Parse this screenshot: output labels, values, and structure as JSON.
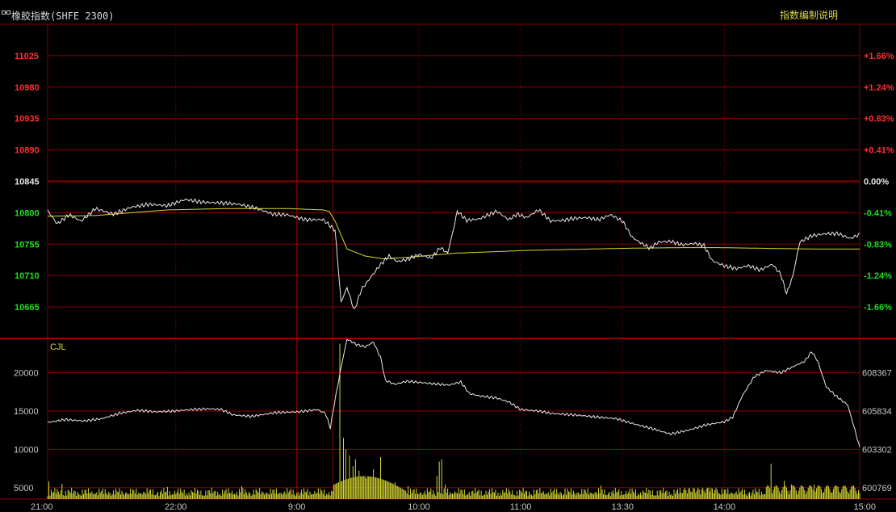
{
  "header": {
    "title": "橡胶指数(SHFE 2300)",
    "help_link": "指数编制说明"
  },
  "colors": {
    "grid": "#8b0000",
    "price_line": "#e8e8e8",
    "avg_line": "#d8d830",
    "volume_bar": "#d8d830",
    "up_text": "#ff3030",
    "down_text": "#22dd22",
    "neutral_text": "#e8e8e8",
    "volume_text": "#c8c8c8",
    "cjl_label": "#e0d84a"
  },
  "chart_data": [
    {
      "type": "line",
      "title": "",
      "prev_close": 10845,
      "ylim": [
        10620,
        11070
      ],
      "y_ticks_left": [
        "11025",
        "10980",
        "10935",
        "10890",
        "10845",
        "10800",
        "10755",
        "10710",
        "10665"
      ],
      "y_ticks_right": [
        "+1.66%",
        "+1.24%",
        "+0.83%",
        "+0.41%",
        "0.00%",
        "-0.41%",
        "-0.83%",
        "-1.24%",
        "-1.66%"
      ],
      "x_ticks": [
        "21:00",
        "22:00",
        "9:00",
        "10:00",
        "11:00",
        "13:30",
        "14:00",
        "15:00"
      ],
      "series": [
        {
          "kind": "price",
          "points": [
            [
              0,
              10803
            ],
            [
              8,
              10784
            ],
            [
              18,
              10797
            ],
            [
              28,
              10788
            ],
            [
              40,
              10806
            ],
            [
              55,
              10798
            ],
            [
              70,
              10808
            ],
            [
              85,
              10812
            ],
            [
              100,
              10810
            ],
            [
              115,
              10819
            ],
            [
              130,
              10815
            ],
            [
              145,
              10814
            ],
            [
              160,
              10812
            ],
            [
              175,
              10806
            ],
            [
              188,
              10798
            ],
            [
              200,
              10797
            ],
            [
              215,
              10790
            ],
            [
              230,
              10790
            ],
            [
              240,
              10775
            ],
            [
              245,
              10672
            ],
            [
              250,
              10693
            ],
            [
              256,
              10660
            ],
            [
              262,
              10690
            ],
            [
              270,
              10708
            ],
            [
              278,
              10726
            ],
            [
              285,
              10738
            ],
            [
              292,
              10730
            ],
            [
              300,
              10733
            ],
            [
              310,
              10740
            ],
            [
              320,
              10735
            ],
            [
              328,
              10750
            ],
            [
              334,
              10742
            ],
            [
              338,
              10770
            ],
            [
              342,
              10802
            ],
            [
              350,
              10789
            ],
            [
              360,
              10791
            ],
            [
              375,
              10802
            ],
            [
              385,
              10790
            ],
            [
              392,
              10798
            ],
            [
              400,
              10793
            ],
            [
              410,
              10804
            ],
            [
              420,
              10788
            ],
            [
              430,
              10789
            ],
            [
              440,
              10792
            ],
            [
              450,
              10793
            ],
            [
              460,
              10790
            ],
            [
              470,
              10797
            ],
            [
              480,
              10788
            ],
            [
              488,
              10765
            ],
            [
              495,
              10757
            ],
            [
              503,
              10749
            ],
            [
              510,
              10758
            ],
            [
              520,
              10759
            ],
            [
              530,
              10754
            ],
            [
              540,
              10756
            ],
            [
              548,
              10753
            ],
            [
              555,
              10731
            ],
            [
              565,
              10724
            ],
            [
              575,
              10720
            ],
            [
              585,
              10724
            ],
            [
              595,
              10718
            ],
            [
              605,
              10726
            ],
            [
              612,
              10712
            ],
            [
              617,
              10684
            ],
            [
              622,
              10708
            ],
            [
              628,
              10758
            ],
            [
              638,
              10767
            ],
            [
              650,
              10770
            ],
            [
              660,
              10770
            ],
            [
              670,
              10763
            ],
            [
              678,
              10769
            ]
          ]
        },
        {
          "kind": "average",
          "points": [
            [
              0,
              10795
            ],
            [
              40,
              10796
            ],
            [
              100,
              10804
            ],
            [
              150,
              10806
            ],
            [
              200,
              10806
            ],
            [
              230,
              10804
            ],
            [
              235,
              10802
            ],
            [
              240,
              10788
            ],
            [
              250,
              10748
            ],
            [
              265,
              10738
            ],
            [
              280,
              10734
            ],
            [
              300,
              10736
            ],
            [
              340,
              10742
            ],
            [
              400,
              10746
            ],
            [
              480,
              10749
            ],
            [
              530,
              10750
            ],
            [
              560,
              10750
            ],
            [
              600,
              10749
            ],
            [
              640,
              10748
            ],
            [
              678,
              10748
            ]
          ]
        }
      ]
    },
    {
      "type": "bar",
      "title": "CJL",
      "ylim": [
        3500,
        24500
      ],
      "y_ticks_left": [
        "20000",
        "15000",
        "10000",
        "5000"
      ],
      "y_ticks_right": [
        "608367",
        "605834",
        "603302",
        "600769"
      ],
      "open_interest": [
        [
          0,
          13500
        ],
        [
          15,
          13900
        ],
        [
          30,
          13700
        ],
        [
          45,
          14000
        ],
        [
          60,
          14700
        ],
        [
          75,
          15100
        ],
        [
          90,
          14900
        ],
        [
          105,
          15000
        ],
        [
          120,
          15200
        ],
        [
          135,
          15300
        ],
        [
          145,
          15200
        ],
        [
          155,
          14500
        ],
        [
          170,
          14300
        ],
        [
          190,
          14800
        ],
        [
          210,
          14900
        ],
        [
          225,
          15200
        ],
        [
          232,
          14700
        ],
        [
          236,
          12800
        ],
        [
          240,
          16500
        ],
        [
          246,
          21500
        ],
        [
          250,
          24400
        ],
        [
          258,
          23700
        ],
        [
          265,
          23400
        ],
        [
          272,
          24000
        ],
        [
          278,
          22000
        ],
        [
          282,
          19000
        ],
        [
          290,
          18500
        ],
        [
          300,
          18900
        ],
        [
          320,
          18600
        ],
        [
          335,
          18400
        ],
        [
          345,
          18800
        ],
        [
          352,
          17300
        ],
        [
          360,
          17000
        ],
        [
          375,
          16700
        ],
        [
          385,
          16200
        ],
        [
          395,
          15200
        ],
        [
          410,
          15000
        ],
        [
          420,
          14700
        ],
        [
          440,
          14500
        ],
        [
          460,
          14200
        ],
        [
          475,
          14000
        ],
        [
          490,
          13300
        ],
        [
          505,
          12700
        ],
        [
          520,
          12000
        ],
        [
          535,
          12500
        ],
        [
          550,
          13200
        ],
        [
          565,
          13600
        ],
        [
          572,
          14200
        ],
        [
          580,
          17000
        ],
        [
          590,
          19500
        ],
        [
          600,
          20300
        ],
        [
          612,
          20000
        ],
        [
          625,
          21000
        ],
        [
          632,
          21500
        ],
        [
          638,
          22800
        ],
        [
          643,
          21500
        ],
        [
          650,
          18200
        ],
        [
          658,
          17000
        ],
        [
          668,
          15800
        ],
        [
          675,
          12000
        ],
        [
          678,
          10200
        ]
      ],
      "volume_spikes": [
        [
          1,
          5800
        ],
        [
          12,
          5500
        ],
        [
          100,
          5100
        ],
        [
          162,
          5200
        ],
        [
          244,
          23800
        ],
        [
          247,
          11500
        ],
        [
          249,
          10000
        ],
        [
          252,
          9200
        ],
        [
          255,
          7800
        ],
        [
          257,
          8700
        ],
        [
          260,
          7200
        ],
        [
          266,
          6200
        ],
        [
          272,
          7400
        ],
        [
          278,
          9000
        ],
        [
          290,
          5700
        ],
        [
          301,
          5200
        ],
        [
          325,
          6500
        ],
        [
          327,
          8400
        ],
        [
          329,
          8700
        ],
        [
          332,
          5400
        ],
        [
          432,
          4900
        ],
        [
          462,
          5300
        ],
        [
          552,
          5000
        ],
        [
          600,
          5100
        ],
        [
          604,
          8100
        ],
        [
          615,
          5900
        ],
        [
          621,
          5400
        ],
        [
          640,
          5400
        ],
        [
          660,
          5100
        ]
      ]
    }
  ]
}
